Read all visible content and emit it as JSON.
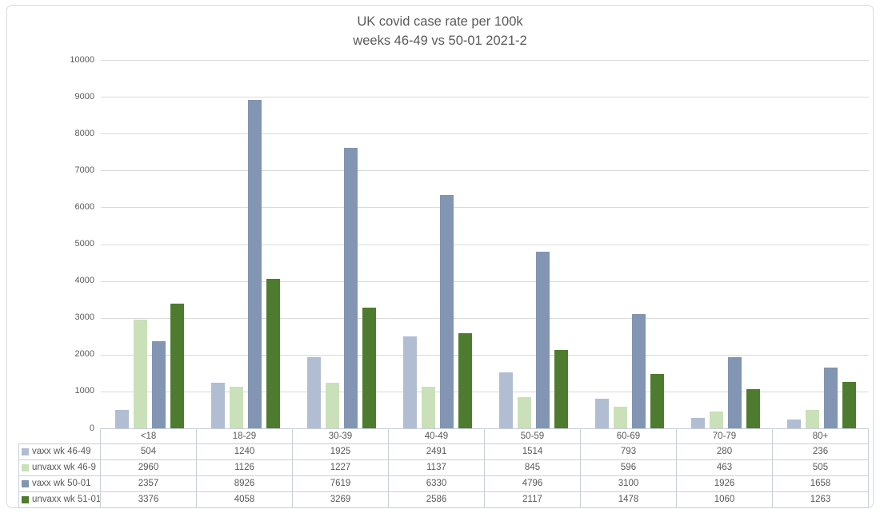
{
  "title": {
    "line1": "UK covid case rate per 100k",
    "line2": "weeks 46-49 vs 50-01 2021-2"
  },
  "colors": {
    "title_text": "#595959",
    "axis_text": "#595959",
    "gridline": "#d9d9d9",
    "table_border": "#c8cfd9",
    "frame_border": "#d9d9d9",
    "background": "#ffffff"
  },
  "chart_data": {
    "type": "bar",
    "title": "UK covid case rate per 100k weeks 46-49 vs 50-01 2021-2",
    "xlabel": "",
    "ylabel": "",
    "ylim": [
      0,
      10000
    ],
    "ytick_step": 1000,
    "grid": true,
    "legend_position": "data-table-left",
    "categories": [
      "<18",
      "18-29",
      "30-39",
      "40-49",
      "50-59",
      "60-69",
      "70-79",
      "80+"
    ],
    "series": [
      {
        "name": "vaxx wk 46-49",
        "color": "#b1bdd3",
        "values": [
          504,
          1240,
          1925,
          2491,
          1514,
          793,
          280,
          236
        ]
      },
      {
        "name": "unvaxx wk 46-9",
        "color": "#c9e0b8",
        "values": [
          2960,
          1126,
          1227,
          1137,
          845,
          596,
          463,
          505
        ]
      },
      {
        "name": "vaxx wk 50-01",
        "color": "#8295b2",
        "values": [
          2357,
          8926,
          7619,
          6330,
          4796,
          3100,
          1926,
          1658
        ]
      },
      {
        "name": "unvaxx wk 51-01",
        "color": "#4e7c2e",
        "values": [
          3376,
          4058,
          3269,
          2586,
          2117,
          1478,
          1060,
          1263
        ]
      }
    ]
  }
}
